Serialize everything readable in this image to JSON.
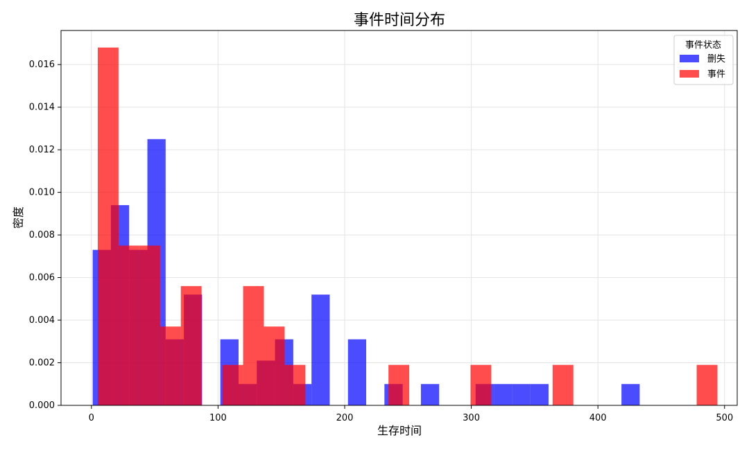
{
  "chart_data": {
    "type": "bar",
    "title": "事件时间分布",
    "xlabel": "生存时间",
    "ylabel": "密度",
    "xlim": [
      -24,
      510
    ],
    "ylim": [
      0,
      0.0176
    ],
    "x_ticks": [
      0,
      100,
      200,
      300,
      400,
      500
    ],
    "y_ticks": [
      0.0,
      0.002,
      0.004,
      0.006,
      0.008,
      0.01,
      0.012,
      0.014,
      0.016
    ],
    "grid": true,
    "legend": {
      "title": "事件状态",
      "placement": "top-right"
    },
    "series": [
      {
        "name": "删失",
        "color": "#0000ff",
        "opacity": 0.7,
        "bins": [
          {
            "x0": 1,
            "x1": 15.4,
            "value": 0.0073
          },
          {
            "x0": 15.4,
            "x1": 29.8,
            "value": 0.0094
          },
          {
            "x0": 29.8,
            "x1": 44.2,
            "value": 0.0073
          },
          {
            "x0": 44.2,
            "x1": 58.6,
            "value": 0.0125
          },
          {
            "x0": 58.6,
            "x1": 73.0,
            "value": 0.0031
          },
          {
            "x0": 73.0,
            "x1": 87.4,
            "value": 0.0052
          },
          {
            "x0": 101.8,
            "x1": 116.2,
            "value": 0.0031
          },
          {
            "x0": 116.2,
            "x1": 130.6,
            "value": 0.001
          },
          {
            "x0": 130.6,
            "x1": 145.0,
            "value": 0.0021
          },
          {
            "x0": 145.0,
            "x1": 159.4,
            "value": 0.0031
          },
          {
            "x0": 159.4,
            "x1": 173.8,
            "value": 0.001
          },
          {
            "x0": 173.8,
            "x1": 188.2,
            "value": 0.0052
          },
          {
            "x0": 202.6,
            "x1": 217.0,
            "value": 0.0031
          },
          {
            "x0": 231.4,
            "x1": 245.8,
            "value": 0.001
          },
          {
            "x0": 260.2,
            "x1": 274.6,
            "value": 0.001
          },
          {
            "x0": 303.4,
            "x1": 317.8,
            "value": 0.001
          },
          {
            "x0": 317.8,
            "x1": 332.2,
            "value": 0.001
          },
          {
            "x0": 332.2,
            "x1": 346.6,
            "value": 0.001
          },
          {
            "x0": 346.6,
            "x1": 361.0,
            "value": 0.001
          },
          {
            "x0": 418.6,
            "x1": 433.0,
            "value": 0.001
          }
        ]
      },
      {
        "name": "事件",
        "color": "#ff0000",
        "opacity": 0.7,
        "bins": [
          {
            "x0": 5,
            "x1": 21.4,
            "value": 0.0168
          },
          {
            "x0": 21.4,
            "x1": 37.8,
            "value": 0.0075
          },
          {
            "x0": 37.8,
            "x1": 54.2,
            "value": 0.0075
          },
          {
            "x0": 54.2,
            "x1": 70.6,
            "value": 0.0037
          },
          {
            "x0": 70.6,
            "x1": 87.0,
            "value": 0.0056
          },
          {
            "x0": 103.4,
            "x1": 119.8,
            "value": 0.0019
          },
          {
            "x0": 119.8,
            "x1": 136.2,
            "value": 0.0056
          },
          {
            "x0": 136.2,
            "x1": 152.6,
            "value": 0.0037
          },
          {
            "x0": 152.6,
            "x1": 169.0,
            "value": 0.0019
          },
          {
            "x0": 234.6,
            "x1": 251.0,
            "value": 0.0019
          },
          {
            "x0": 299.4,
            "x1": 315.8,
            "value": 0.0019
          },
          {
            "x0": 364.2,
            "x1": 380.6,
            "value": 0.0019
          },
          {
            "x0": 478.0,
            "x1": 494.4,
            "value": 0.0019
          }
        ]
      }
    ]
  }
}
